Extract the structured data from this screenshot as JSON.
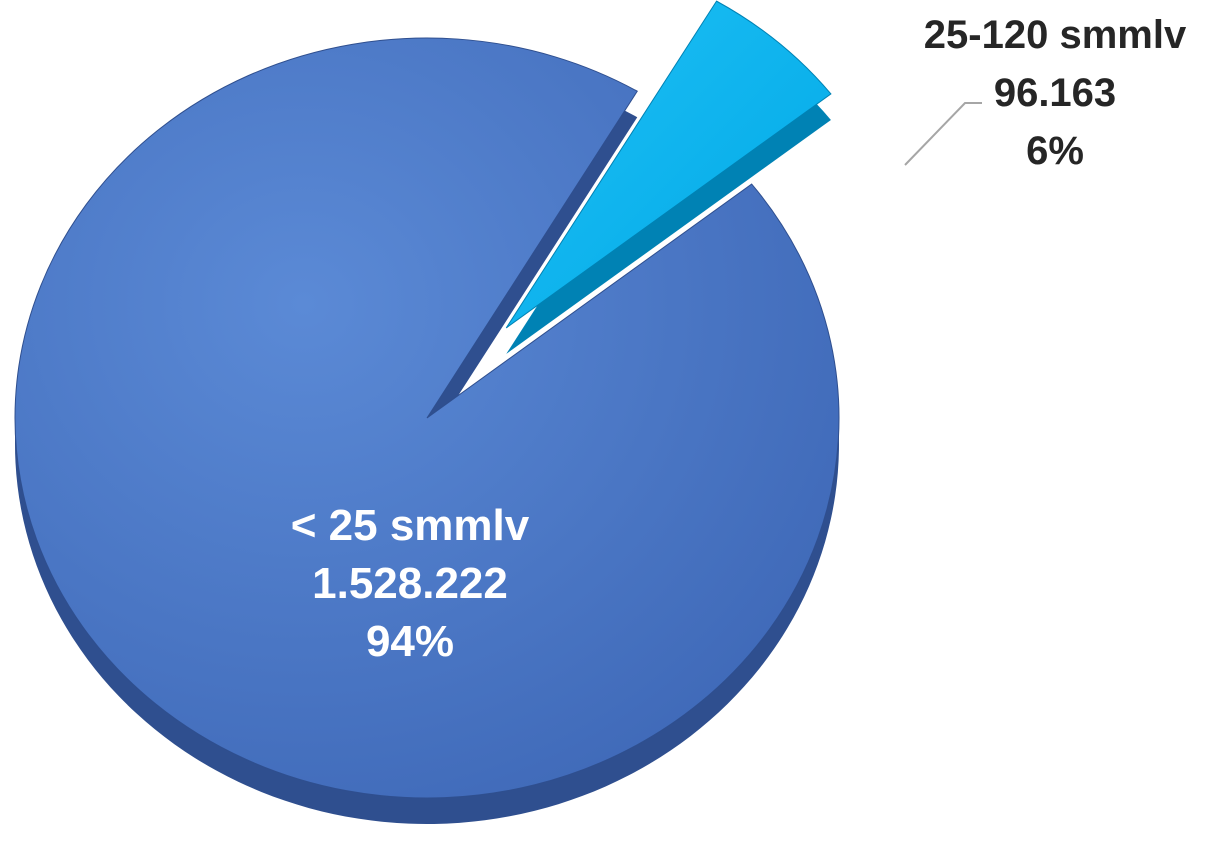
{
  "chart_data": {
    "type": "pie",
    "title": "",
    "slices": [
      {
        "label": "< 25 smmlv",
        "value": 1528222,
        "value_text": "1.528.222",
        "percent_text": "94%",
        "color": "#4472C4",
        "color_dark": "#2F4F8F",
        "text_color": "#FFFFFF",
        "exploded": false
      },
      {
        "label": "25-120 smmlv",
        "value": 96163,
        "value_text": "96.163",
        "percent_text": "6%",
        "color": "#00B0F0",
        "color_dark": "#0082B4",
        "text_color": "#262626",
        "exploded": true
      }
    ],
    "legend": "none",
    "style": "3d-exploded"
  }
}
